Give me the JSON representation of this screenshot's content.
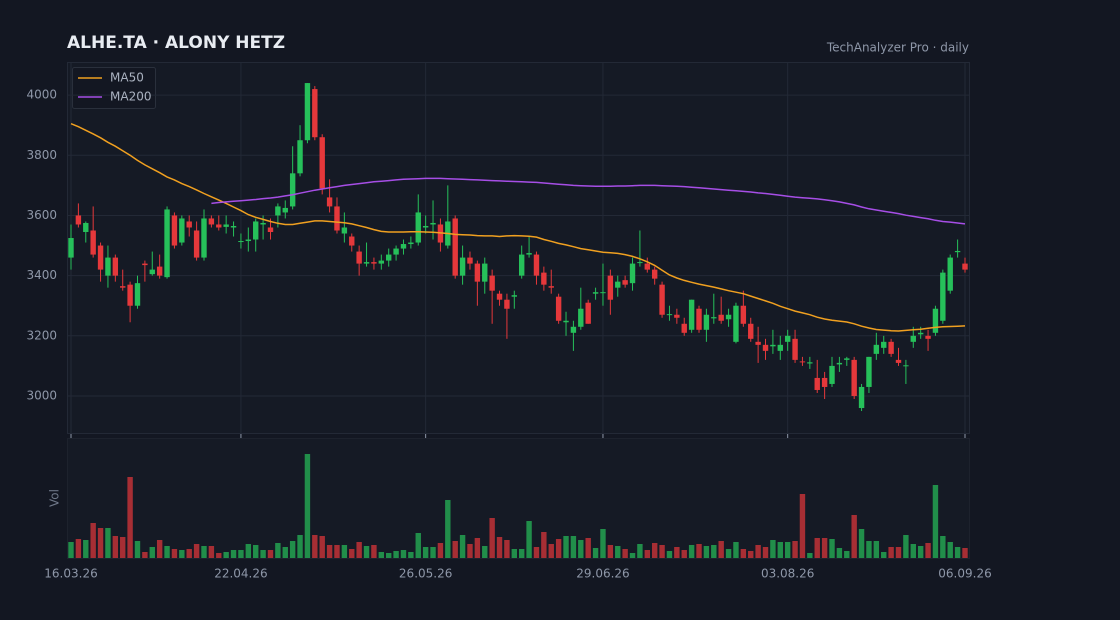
{
  "chart_data": {
    "type": "candlestick",
    "title": "ALHE.TA · ALONY HETZ",
    "subtitle": "TechAnalyzer Pro · daily",
    "volume_label": "Vol",
    "categories": [
      "16.03.26",
      null,
      null,
      null,
      null,
      null,
      null,
      null,
      null,
      null,
      null,
      null,
      null,
      null,
      null,
      null,
      null,
      null,
      null,
      null,
      null,
      null,
      null,
      "22.04.26",
      null,
      null,
      null,
      null,
      null,
      null,
      null,
      null,
      null,
      null,
      null,
      null,
      null,
      null,
      null,
      null,
      null,
      null,
      null,
      null,
      null,
      null,
      null,
      null,
      "26.05.26",
      null,
      null,
      null,
      null,
      null,
      null,
      null,
      null,
      null,
      null,
      null,
      null,
      null,
      null,
      null,
      null,
      null,
      null,
      null,
      null,
      null,
      null,
      null,
      "29.06.26",
      null,
      null,
      null,
      null,
      null,
      null,
      null,
      null,
      null,
      null,
      null,
      null,
      null,
      null,
      null,
      null,
      null,
      null,
      null,
      null,
      null,
      null,
      null,
      null,
      "03.08.26",
      null,
      null,
      null,
      null,
      null,
      null,
      null,
      null,
      null,
      null,
      null,
      null,
      null,
      null,
      null,
      null,
      null,
      null,
      null,
      null,
      null,
      null,
      null,
      "06.09.26"
    ],
    "ohlc": [
      [
        3460,
        3570,
        3420,
        3525
      ],
      [
        3600,
        3640,
        3560,
        3570
      ],
      [
        3545,
        3580,
        3510,
        3575
      ],
      [
        3550,
        3630,
        3460,
        3470
      ],
      [
        3500,
        3510,
        3380,
        3420
      ],
      [
        3400,
        3500,
        3360,
        3460
      ],
      [
        3460,
        3470,
        3380,
        3400
      ],
      [
        3365,
        3420,
        3350,
        3360
      ],
      [
        3370,
        3380,
        3245,
        3300
      ],
      [
        3300,
        3400,
        3290,
        3375
      ],
      [
        3440,
        3450,
        3380,
        3435
      ],
      [
        3405,
        3480,
        3400,
        3420
      ],
      [
        3430,
        3470,
        3390,
        3400
      ],
      [
        3395,
        3630,
        3390,
        3620
      ],
      [
        3600,
        3610,
        3490,
        3500
      ],
      [
        3510,
        3600,
        3500,
        3590
      ],
      [
        3580,
        3600,
        3530,
        3560
      ],
      [
        3550,
        3580,
        3450,
        3460
      ],
      [
        3460,
        3620,
        3450,
        3590
      ],
      [
        3590,
        3600,
        3560,
        3570
      ],
      [
        3570,
        3600,
        3550,
        3560
      ],
      [
        3562,
        3600,
        3540,
        3570
      ],
      [
        3560,
        3580,
        3530,
        3565
      ],
      [
        3512,
        3540,
        3490,
        3515
      ],
      [
        3515,
        3560,
        3480,
        3520
      ],
      [
        3520,
        3590,
        3480,
        3580
      ],
      [
        3570,
        3600,
        3520,
        3575
      ],
      [
        3560,
        3590,
        3520,
        3545
      ],
      [
        3600,
        3640,
        3560,
        3630
      ],
      [
        3610,
        3650,
        3590,
        3625
      ],
      [
        3630,
        3830,
        3620,
        3740
      ],
      [
        3740,
        3900,
        3730,
        3850
      ],
      [
        3850,
        4040,
        3840,
        4040
      ],
      [
        4020,
        4030,
        3850,
        3860
      ],
      [
        3860,
        3870,
        3670,
        3690
      ],
      [
        3660,
        3720,
        3610,
        3630
      ],
      [
        3630,
        3660,
        3540,
        3550
      ],
      [
        3540,
        3610,
        3510,
        3560
      ],
      [
        3530,
        3540,
        3480,
        3500
      ],
      [
        3480,
        3500,
        3400,
        3440
      ],
      [
        3440,
        3510,
        3430,
        3445
      ],
      [
        3445,
        3460,
        3420,
        3440
      ],
      [
        3440,
        3470,
        3420,
        3450
      ],
      [
        3450,
        3490,
        3430,
        3470
      ],
      [
        3470,
        3500,
        3450,
        3490
      ],
      [
        3490,
        3520,
        3470,
        3505
      ],
      [
        3505,
        3530,
        3490,
        3510
      ],
      [
        3510,
        3670,
        3500,
        3610
      ],
      [
        3560,
        3600,
        3540,
        3565
      ],
      [
        3570,
        3650,
        3520,
        3575
      ],
      [
        3570,
        3590,
        3480,
        3510
      ],
      [
        3500,
        3700,
        3490,
        3580
      ],
      [
        3590,
        3600,
        3390,
        3400
      ],
      [
        3400,
        3500,
        3370,
        3460
      ],
      [
        3460,
        3480,
        3420,
        3440
      ],
      [
        3440,
        3450,
        3300,
        3380
      ],
      [
        3380,
        3460,
        3340,
        3440
      ],
      [
        3400,
        3420,
        3240,
        3350
      ],
      [
        3340,
        3350,
        3300,
        3320
      ],
      [
        3320,
        3340,
        3190,
        3290
      ],
      [
        3330,
        3350,
        3290,
        3335
      ],
      [
        3400,
        3500,
        3390,
        3470
      ],
      [
        3470,
        3530,
        3460,
        3475
      ],
      [
        3470,
        3480,
        3370,
        3400
      ],
      [
        3410,
        3430,
        3350,
        3370
      ],
      [
        3365,
        3420,
        3340,
        3360
      ],
      [
        3330,
        3340,
        3240,
        3250
      ],
      [
        3245,
        3280,
        3200,
        3250
      ],
      [
        3210,
        3250,
        3150,
        3230
      ],
      [
        3230,
        3360,
        3220,
        3290
      ],
      [
        3310,
        3320,
        3240,
        3240
      ],
      [
        3340,
        3360,
        3320,
        3345
      ],
      [
        3345,
        3440,
        3300,
        3345
      ],
      [
        3400,
        3420,
        3270,
        3320
      ],
      [
        3360,
        3400,
        3330,
        3380
      ],
      [
        3385,
        3400,
        3360,
        3370
      ],
      [
        3375,
        3460,
        3350,
        3440
      ],
      [
        3445,
        3550,
        3430,
        3445
      ],
      [
        3440,
        3460,
        3410,
        3420
      ],
      [
        3420,
        3430,
        3370,
        3390
      ],
      [
        3370,
        3380,
        3260,
        3270
      ],
      [
        3270,
        3300,
        3250,
        3272
      ],
      [
        3270,
        3290,
        3240,
        3260
      ],
      [
        3240,
        3260,
        3200,
        3210
      ],
      [
        3220,
        3320,
        3210,
        3320
      ],
      [
        3290,
        3300,
        3210,
        3220
      ],
      [
        3220,
        3290,
        3180,
        3270
      ],
      [
        3258,
        3340,
        3240,
        3262
      ],
      [
        3270,
        3330,
        3240,
        3250
      ],
      [
        3255,
        3290,
        3230,
        3270
      ],
      [
        3180,
        3310,
        3175,
        3300
      ],
      [
        3300,
        3350,
        3230,
        3240
      ],
      [
        3240,
        3260,
        3180,
        3190
      ],
      [
        3180,
        3230,
        3110,
        3170
      ],
      [
        3170,
        3190,
        3120,
        3150
      ],
      [
        3165,
        3220,
        3140,
        3170
      ],
      [
        3150,
        3200,
        3120,
        3170
      ],
      [
        3180,
        3220,
        3150,
        3200
      ],
      [
        3190,
        3220,
        3110,
        3120
      ],
      [
        3115,
        3130,
        3100,
        3112
      ],
      [
        3108,
        3130,
        3090,
        3112
      ],
      [
        3060,
        3120,
        3010,
        3020
      ],
      [
        3060,
        3080,
        2990,
        3030
      ],
      [
        3040,
        3130,
        3030,
        3100
      ],
      [
        3105,
        3130,
        3080,
        3110
      ],
      [
        3120,
        3130,
        3100,
        3125
      ],
      [
        3120,
        3130,
        2990,
        3000
      ],
      [
        2960,
        3040,
        2950,
        3030
      ],
      [
        3030,
        3130,
        3010,
        3130
      ],
      [
        3140,
        3210,
        3120,
        3170
      ],
      [
        3160,
        3200,
        3140,
        3180
      ],
      [
        3180,
        3190,
        3130,
        3140
      ],
      [
        3120,
        3160,
        3100,
        3110
      ],
      [
        3100,
        3120,
        3040,
        3102
      ],
      [
        3180,
        3230,
        3160,
        3200
      ],
      [
        3205,
        3230,
        3190,
        3210
      ],
      [
        3200,
        3220,
        3150,
        3190
      ],
      [
        3210,
        3300,
        3200,
        3290
      ],
      [
        3250,
        3420,
        3240,
        3410
      ],
      [
        3350,
        3470,
        3340,
        3460
      ],
      [
        3478,
        3520,
        3460,
        3482
      ],
      [
        3440,
        3460,
        3410,
        3420
      ]
    ],
    "volume": [
      16,
      19,
      18,
      35,
      30,
      30,
      22,
      21,
      81,
      17,
      6,
      11,
      18,
      12,
      9,
      8,
      9,
      14,
      12,
      12,
      5,
      6,
      8,
      8,
      14,
      13,
      8,
      8,
      15,
      11,
      17,
      23,
      104,
      23,
      22,
      13,
      13,
      13,
      9,
      16,
      12,
      13,
      6,
      5,
      7,
      8,
      6,
      25,
      11,
      11,
      15,
      58,
      17,
      23,
      14,
      20,
      12,
      40,
      21,
      18,
      9,
      9,
      37,
      11,
      26,
      14,
      19,
      22,
      22,
      18,
      20,
      10,
      29,
      13,
      12,
      9,
      5,
      14,
      8,
      15,
      13,
      7,
      11,
      8,
      13,
      14,
      12,
      13,
      17,
      9,
      16,
      9,
      7,
      13,
      11,
      18,
      16,
      16,
      17,
      64,
      5,
      20,
      20,
      19,
      10,
      7,
      43,
      29,
      17,
      17,
      6,
      11,
      11,
      23,
      14,
      12,
      15,
      73,
      22,
      16,
      11,
      10
    ],
    "series": [
      {
        "name": "MA50",
        "color": "#f0a020",
        "values": [
          3905,
          3895,
          3883,
          3871,
          3858,
          3843,
          3830,
          3815,
          3800,
          3783,
          3768,
          3755,
          3742,
          3728,
          3718,
          3706,
          3696,
          3685,
          3673,
          3662,
          3651,
          3640,
          3628,
          3616,
          3603,
          3594,
          3587,
          3580,
          3574,
          3570,
          3570,
          3574,
          3578,
          3582,
          3582,
          3580,
          3578,
          3576,
          3572,
          3566,
          3560,
          3553,
          3547,
          3545,
          3545,
          3545,
          3546,
          3546,
          3545,
          3544,
          3542,
          3540,
          3537,
          3536,
          3535,
          3533,
          3532,
          3532,
          3530,
          3532,
          3533,
          3532,
          3531,
          3528,
          3520,
          3514,
          3507,
          3502,
          3496,
          3490,
          3486,
          3482,
          3478,
          3476,
          3474,
          3470,
          3464,
          3456,
          3446,
          3434,
          3418,
          3402,
          3392,
          3384,
          3378,
          3372,
          3367,
          3362,
          3356,
          3350,
          3345,
          3340,
          3332,
          3324,
          3316,
          3308,
          3298,
          3290,
          3282,
          3276,
          3270,
          3262,
          3256,
          3252,
          3249,
          3246,
          3240,
          3232,
          3226,
          3221,
          3219,
          3217,
          3216,
          3218,
          3220,
          3222,
          3225,
          3228,
          3230,
          3231,
          3232,
          3233
        ]
      },
      {
        "name": "MA200",
        "color": "#a64ee6",
        "values": [
          null,
          null,
          null,
          null,
          null,
          null,
          null,
          null,
          null,
          null,
          null,
          null,
          null,
          null,
          null,
          null,
          null,
          null,
          null,
          3640,
          3643,
          3645,
          3647,
          3649,
          3651,
          3653,
          3656,
          3658,
          3661,
          3665,
          3669,
          3674,
          3679,
          3684,
          3688,
          3692,
          3696,
          3700,
          3703,
          3706,
          3709,
          3712,
          3714,
          3716,
          3718,
          3720,
          3721,
          3722,
          3723,
          3723,
          3723,
          3722,
          3721,
          3720,
          3719,
          3718,
          3717,
          3716,
          3715,
          3714,
          3713,
          3712,
          3711,
          3710,
          3708,
          3706,
          3704,
          3702,
          3700,
          3699,
          3698,
          3697,
          3697,
          3697,
          3698,
          3698,
          3699,
          3700,
          3700,
          3700,
          3699,
          3698,
          3697,
          3696,
          3694,
          3692,
          3690,
          3688,
          3686,
          3684,
          3682,
          3680,
          3678,
          3675,
          3673,
          3670,
          3667,
          3664,
          3661,
          3659,
          3657,
          3655,
          3652,
          3649,
          3645,
          3640,
          3635,
          3628,
          3622,
          3618,
          3614,
          3610,
          3606,
          3601,
          3597,
          3593,
          3589,
          3584,
          3580,
          3578,
          3575,
          3572
        ]
      }
    ],
    "up_color": "#26c05a",
    "down_color": "#e5383b",
    "ylim": [
      2877,
      4110
    ],
    "yticks": [
      3000,
      3200,
      3400,
      3600,
      3800,
      4000
    ],
    "grid": true,
    "legend": "upper left"
  }
}
